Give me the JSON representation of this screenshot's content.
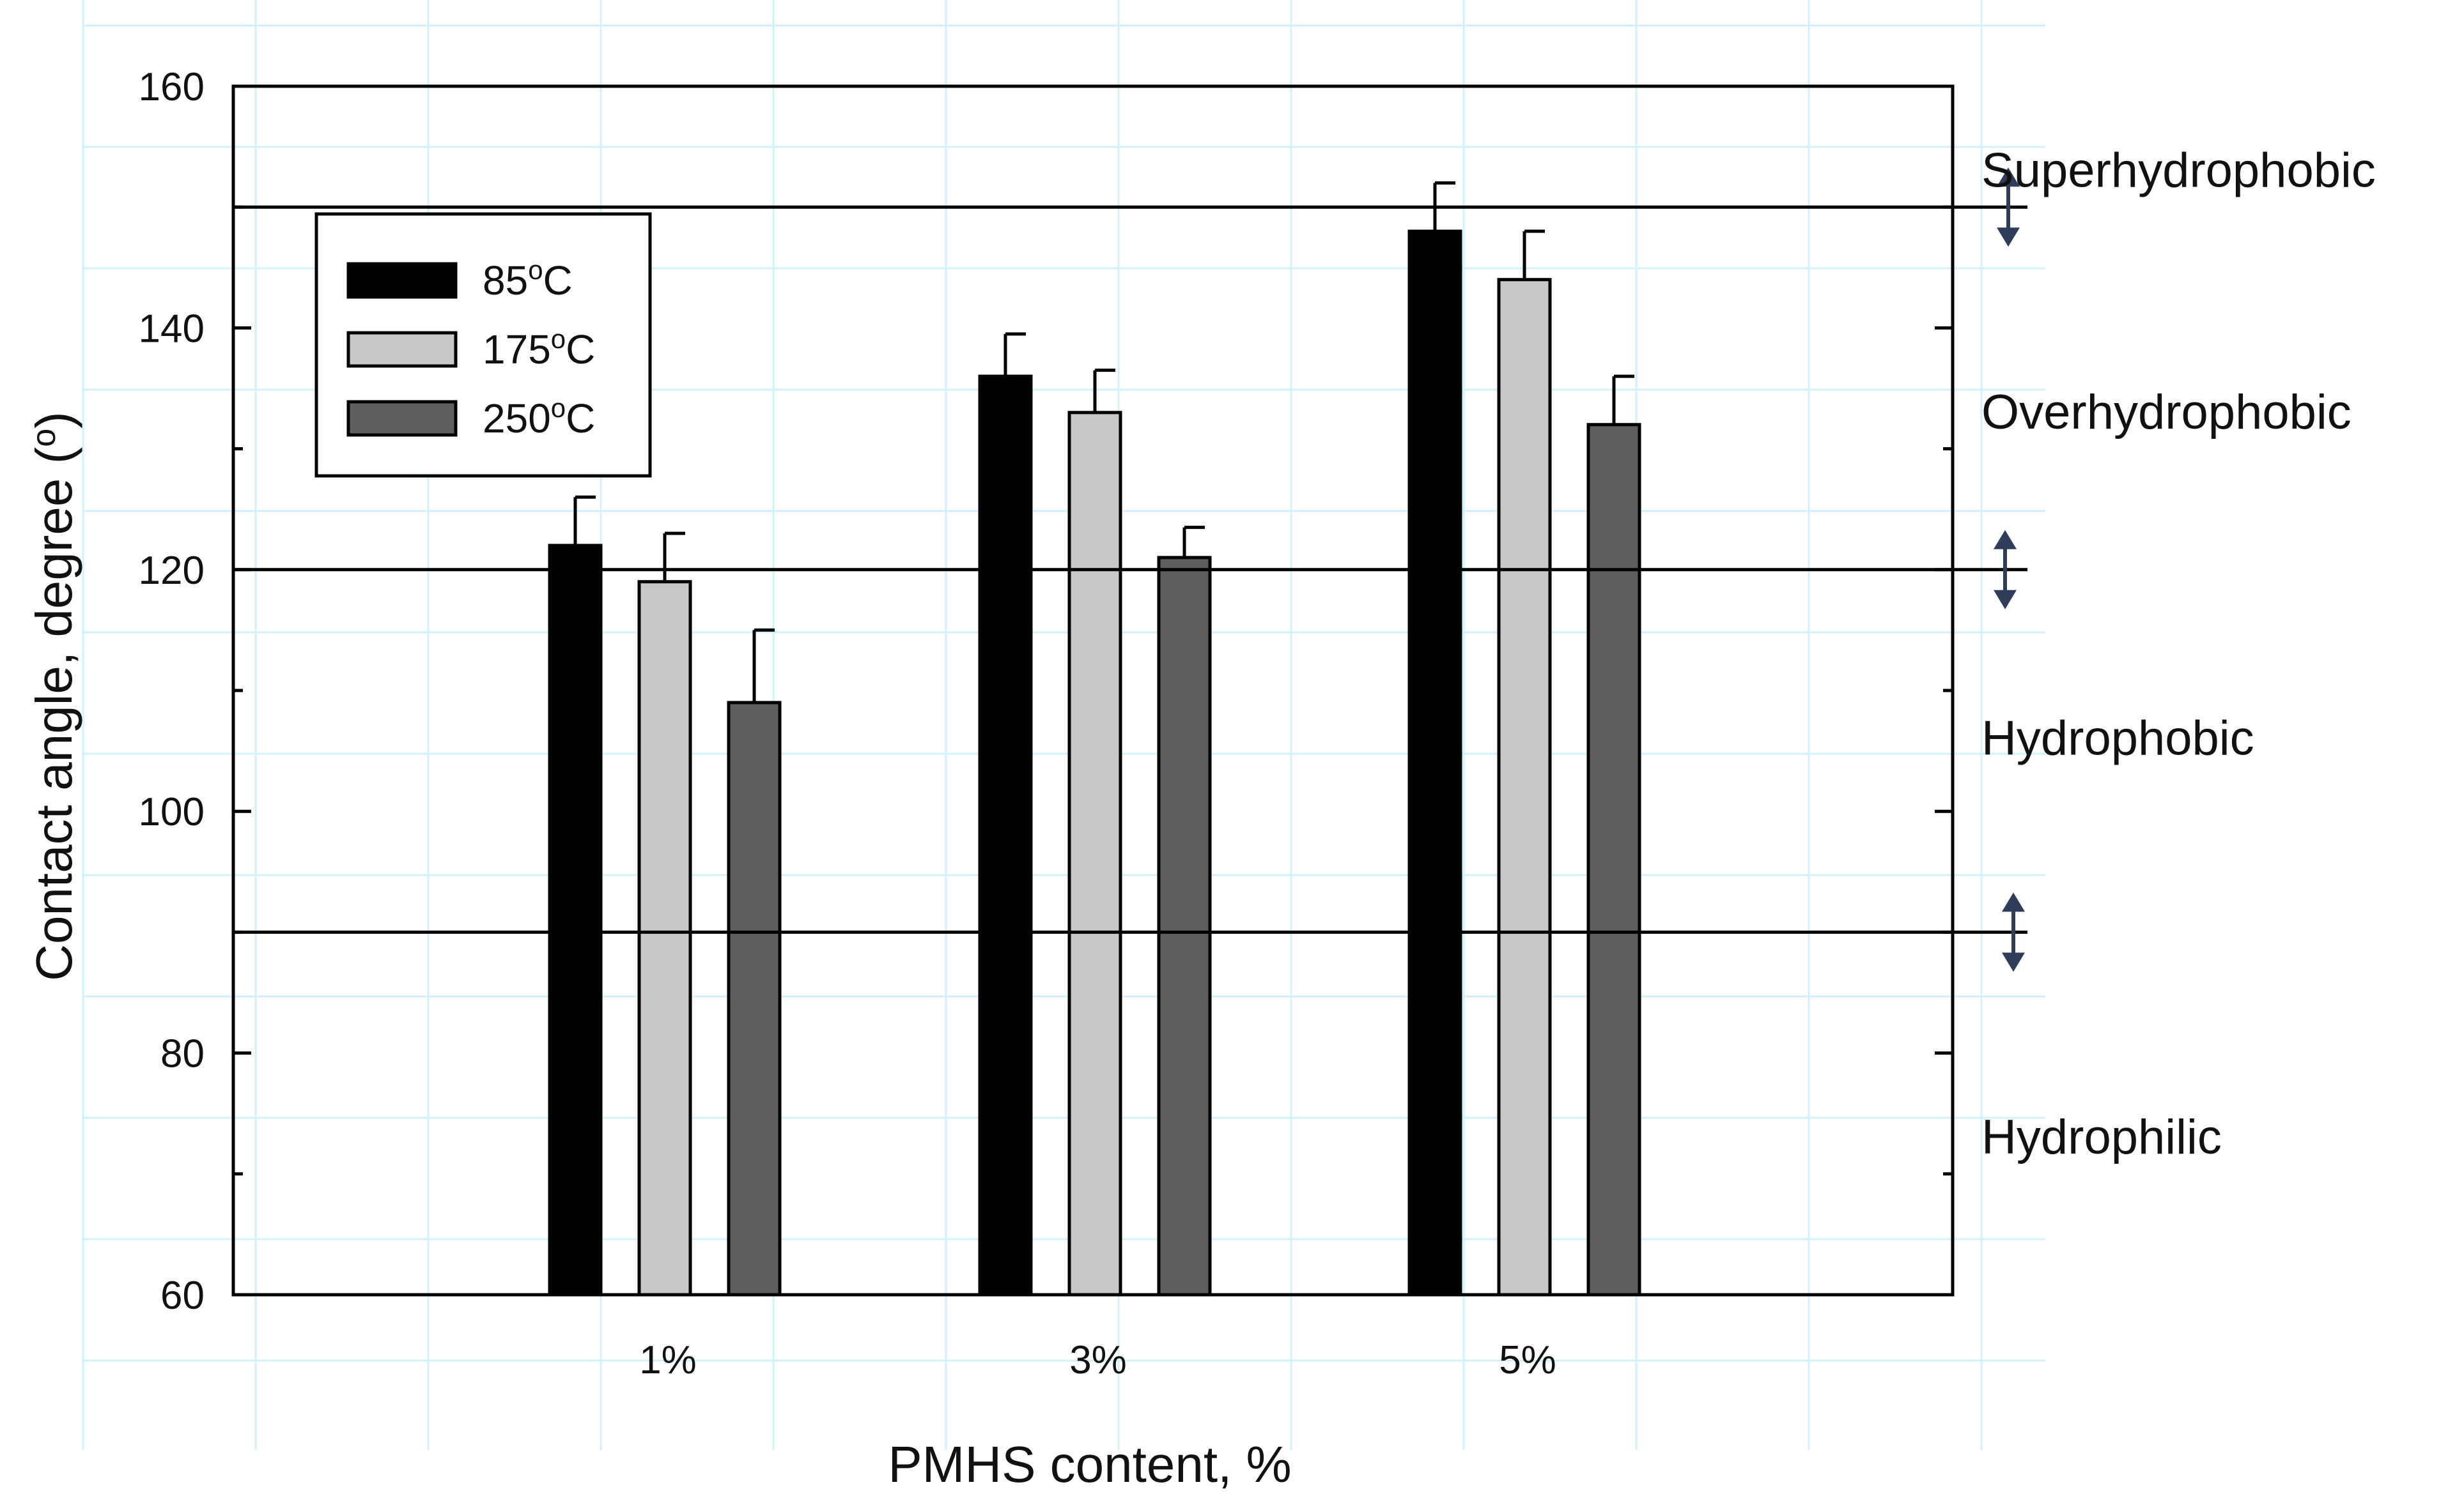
{
  "chart_data": {
    "type": "bar",
    "title": "",
    "xlabel": "PMHS content, %",
    "ylabel": "Contact angle, degree (",
    "ylabel_symbol": "o",
    "ylabel_close": ")",
    "categories": [
      "1%",
      "3%",
      "5%"
    ],
    "ylim": [
      60,
      160
    ],
    "yticks": [
      60,
      80,
      100,
      120,
      140,
      160
    ],
    "series": [
      {
        "name_base": "85",
        "name_sup": "o",
        "name_unit": "C",
        "color": "#000000",
        "values": [
          122,
          136,
          148
        ],
        "errors": [
          4,
          3.5,
          4
        ]
      },
      {
        "name_base": "175",
        "name_sup": "o",
        "name_unit": "C",
        "color": "#c8c8c8",
        "values": [
          119,
          133,
          144
        ],
        "errors": [
          4,
          3.5,
          4
        ]
      },
      {
        "name_base": "250",
        "name_sup": "o",
        "name_unit": "C",
        "color": "#5e5e5e",
        "values": [
          109,
          121,
          132
        ],
        "errors": [
          6,
          2.5,
          4
        ]
      }
    ],
    "thresholds": [
      150,
      120,
      90
    ],
    "region_labels": [
      {
        "text": "Superhydrophobic",
        "value": 153
      },
      {
        "text": "Overhydrophobic",
        "value": 133
      },
      {
        "text": "Hydrophobic",
        "value": 106
      },
      {
        "text": "Hydrophilic",
        "value": 73
      }
    ],
    "legend_position": "top-left",
    "grid": true
  }
}
